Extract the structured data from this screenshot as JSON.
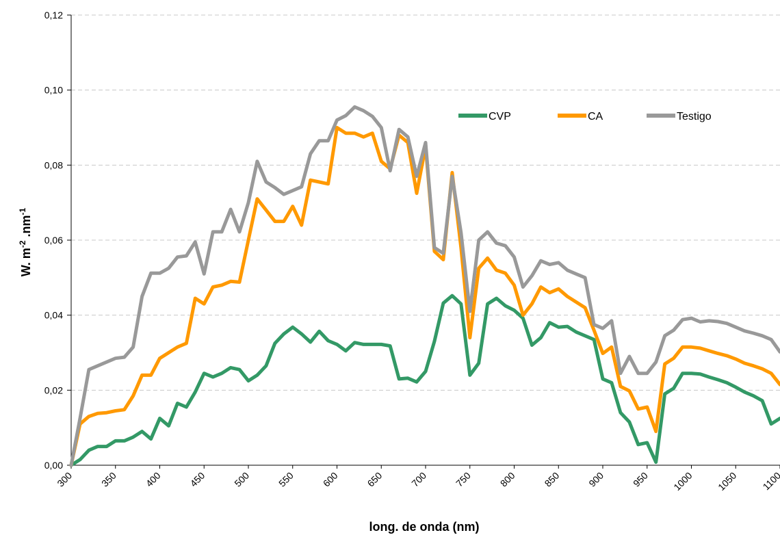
{
  "chart_data": {
    "type": "line",
    "title": "",
    "xlabel": "long. de onda (nm)",
    "ylabel_parts": {
      "base1": "W. m",
      "exp1": "-2",
      "base2": " .nm",
      "exp2": "-1"
    },
    "xlim": [
      300,
      1100
    ],
    "ylim": [
      0,
      0.12
    ],
    "xticks": [
      300,
      350,
      400,
      450,
      500,
      550,
      600,
      650,
      700,
      750,
      800,
      850,
      900,
      950,
      1000,
      1050,
      1100
    ],
    "yticks": [
      "0,00",
      "0,02",
      "0,04",
      "0,06",
      "0,08",
      "0,10",
      "0,12"
    ],
    "grid": "horizontal dashed",
    "legend_position": "top-right",
    "x": [
      300,
      310,
      320,
      330,
      340,
      350,
      360,
      370,
      380,
      390,
      400,
      410,
      420,
      430,
      440,
      450,
      460,
      470,
      480,
      490,
      500,
      510,
      520,
      530,
      540,
      550,
      560,
      570,
      580,
      590,
      600,
      610,
      620,
      630,
      640,
      650,
      660,
      670,
      680,
      690,
      700,
      710,
      720,
      730,
      740,
      750,
      760,
      770,
      780,
      790,
      800,
      810,
      820,
      830,
      840,
      850,
      860,
      870,
      880,
      890,
      900,
      910,
      920,
      930,
      940,
      950,
      960,
      970,
      980,
      990,
      1000,
      1010,
      1020,
      1030,
      1040,
      1050,
      1060,
      1070,
      1080,
      1090,
      1100
    ],
    "series": [
      {
        "name": "CVP",
        "color": "#339966",
        "values": [
          0.0,
          0.0015,
          0.004,
          0.005,
          0.005,
          0.0065,
          0.0065,
          0.0075,
          0.009,
          0.007,
          0.0125,
          0.0105,
          0.0165,
          0.0155,
          0.0195,
          0.0245,
          0.0235,
          0.0245,
          0.026,
          0.0255,
          0.0225,
          0.024,
          0.0265,
          0.0325,
          0.035,
          0.0368,
          0.035,
          0.0328,
          0.0357,
          0.0332,
          0.0322,
          0.0305,
          0.0327,
          0.0322,
          0.0322,
          0.0322,
          0.0318,
          0.023,
          0.0232,
          0.0222,
          0.025,
          0.033,
          0.0432,
          0.0452,
          0.043,
          0.024,
          0.0272,
          0.043,
          0.0445,
          0.0425,
          0.0413,
          0.0392,
          0.032,
          0.034,
          0.038,
          0.0368,
          0.037,
          0.0355,
          0.0345,
          0.0335,
          0.023,
          0.022,
          0.014,
          0.0115,
          0.0055,
          0.006,
          0.0008,
          0.019,
          0.0205,
          0.0245,
          0.0245,
          0.0243,
          0.0235,
          0.0228,
          0.022,
          0.0208,
          0.0195,
          0.0185,
          0.0172,
          0.011,
          0.0125
        ]
      },
      {
        "name": "CA",
        "color": "#ff9900",
        "values": [
          0.0,
          0.011,
          0.013,
          0.0138,
          0.014,
          0.0145,
          0.0148,
          0.0185,
          0.024,
          0.024,
          0.0285,
          0.03,
          0.0315,
          0.0325,
          0.0445,
          0.043,
          0.0475,
          0.048,
          0.049,
          0.0488,
          0.06,
          0.071,
          0.068,
          0.065,
          0.065,
          0.069,
          0.064,
          0.076,
          0.0755,
          0.075,
          0.09,
          0.0885,
          0.0885,
          0.0875,
          0.0885,
          0.081,
          0.079,
          0.088,
          0.086,
          0.0725,
          0.085,
          0.057,
          0.0548,
          0.078,
          0.058,
          0.034,
          0.0525,
          0.0552,
          0.052,
          0.0512,
          0.048,
          0.04,
          0.043,
          0.0475,
          0.046,
          0.047,
          0.045,
          0.0435,
          0.042,
          0.036,
          0.0298,
          0.0315,
          0.021,
          0.0198,
          0.015,
          0.0155,
          0.009,
          0.027,
          0.0285,
          0.0315,
          0.0315,
          0.0312,
          0.0305,
          0.0298,
          0.0292,
          0.0283,
          0.0272,
          0.0265,
          0.0257,
          0.0245,
          0.0215
        ]
      },
      {
        "name": "Testigo",
        "color": "#999999",
        "values": [
          0.0,
          0.0125,
          0.0255,
          0.0265,
          0.0275,
          0.0285,
          0.0288,
          0.0315,
          0.045,
          0.0512,
          0.0512,
          0.0525,
          0.0555,
          0.0558,
          0.0595,
          0.051,
          0.0622,
          0.0622,
          0.0682,
          0.0622,
          0.07,
          0.081,
          0.0755,
          0.074,
          0.0722,
          0.0732,
          0.0742,
          0.083,
          0.0865,
          0.0865,
          0.092,
          0.0932,
          0.0955,
          0.0945,
          0.093,
          0.09,
          0.0785,
          0.0895,
          0.0875,
          0.077,
          0.086,
          0.058,
          0.0565,
          0.077,
          0.062,
          0.041,
          0.06,
          0.0622,
          0.0592,
          0.0585,
          0.0555,
          0.0475,
          0.0505,
          0.0545,
          0.0535,
          0.054,
          0.052,
          0.051,
          0.05,
          0.0375,
          0.0365,
          0.0385,
          0.0245,
          0.029,
          0.0245,
          0.0245,
          0.0275,
          0.0345,
          0.036,
          0.0388,
          0.0392,
          0.0382,
          0.0385,
          0.0383,
          0.0378,
          0.0368,
          0.0358,
          0.0352,
          0.0345,
          0.0335,
          0.0302
        ]
      }
    ]
  }
}
